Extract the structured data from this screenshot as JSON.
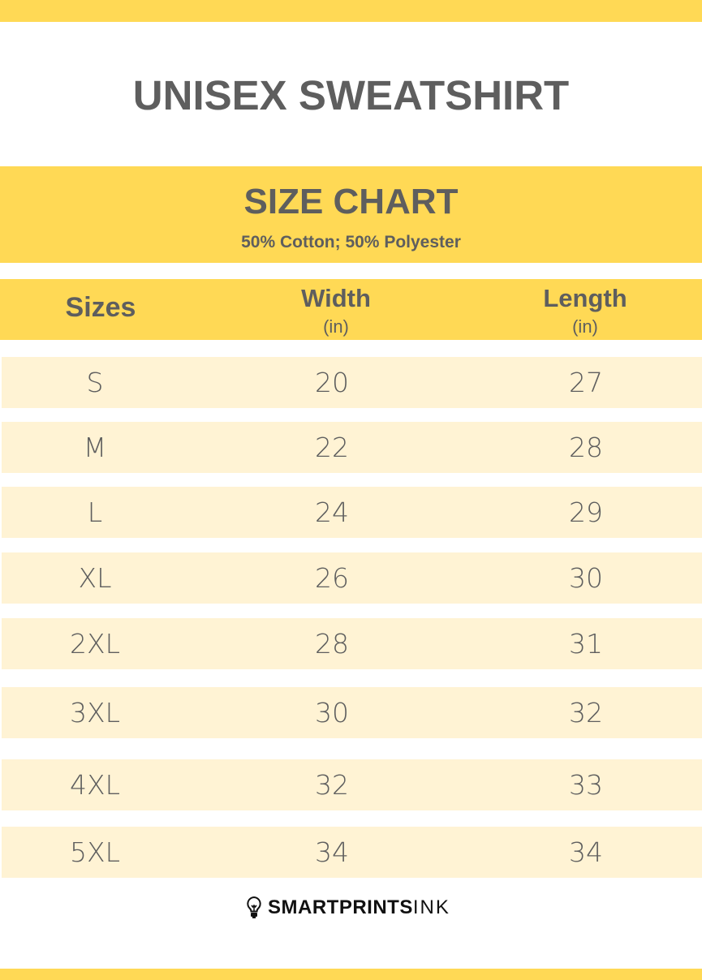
{
  "title": "UNISEX SWEATSHIRT",
  "size_chart": {
    "title": "SIZE CHART",
    "material": "50% Cotton; 50% Polyester"
  },
  "table": {
    "headers": [
      {
        "label": "Sizes",
        "unit": ""
      },
      {
        "label": "Width",
        "unit": "(in)"
      },
      {
        "label": "Length",
        "unit": "(in)"
      }
    ],
    "rows": [
      [
        "S",
        "20",
        "27"
      ],
      [
        "M",
        "22",
        "28"
      ],
      [
        "L",
        "24",
        "29"
      ],
      [
        "XL",
        "26",
        "30"
      ],
      [
        "2XL",
        "28",
        "31"
      ],
      [
        "3XL",
        "30",
        "32"
      ],
      [
        "4XL",
        "32",
        "33"
      ],
      [
        "5XL",
        "34",
        "34"
      ]
    ]
  },
  "logo": {
    "bold": "SMARTPRINTS",
    "light": "INK",
    "icon": "lightbulb-icon"
  },
  "colors": {
    "accent": "#FFD955",
    "row": "#FFF3D4",
    "text": "#5e5e5e"
  }
}
